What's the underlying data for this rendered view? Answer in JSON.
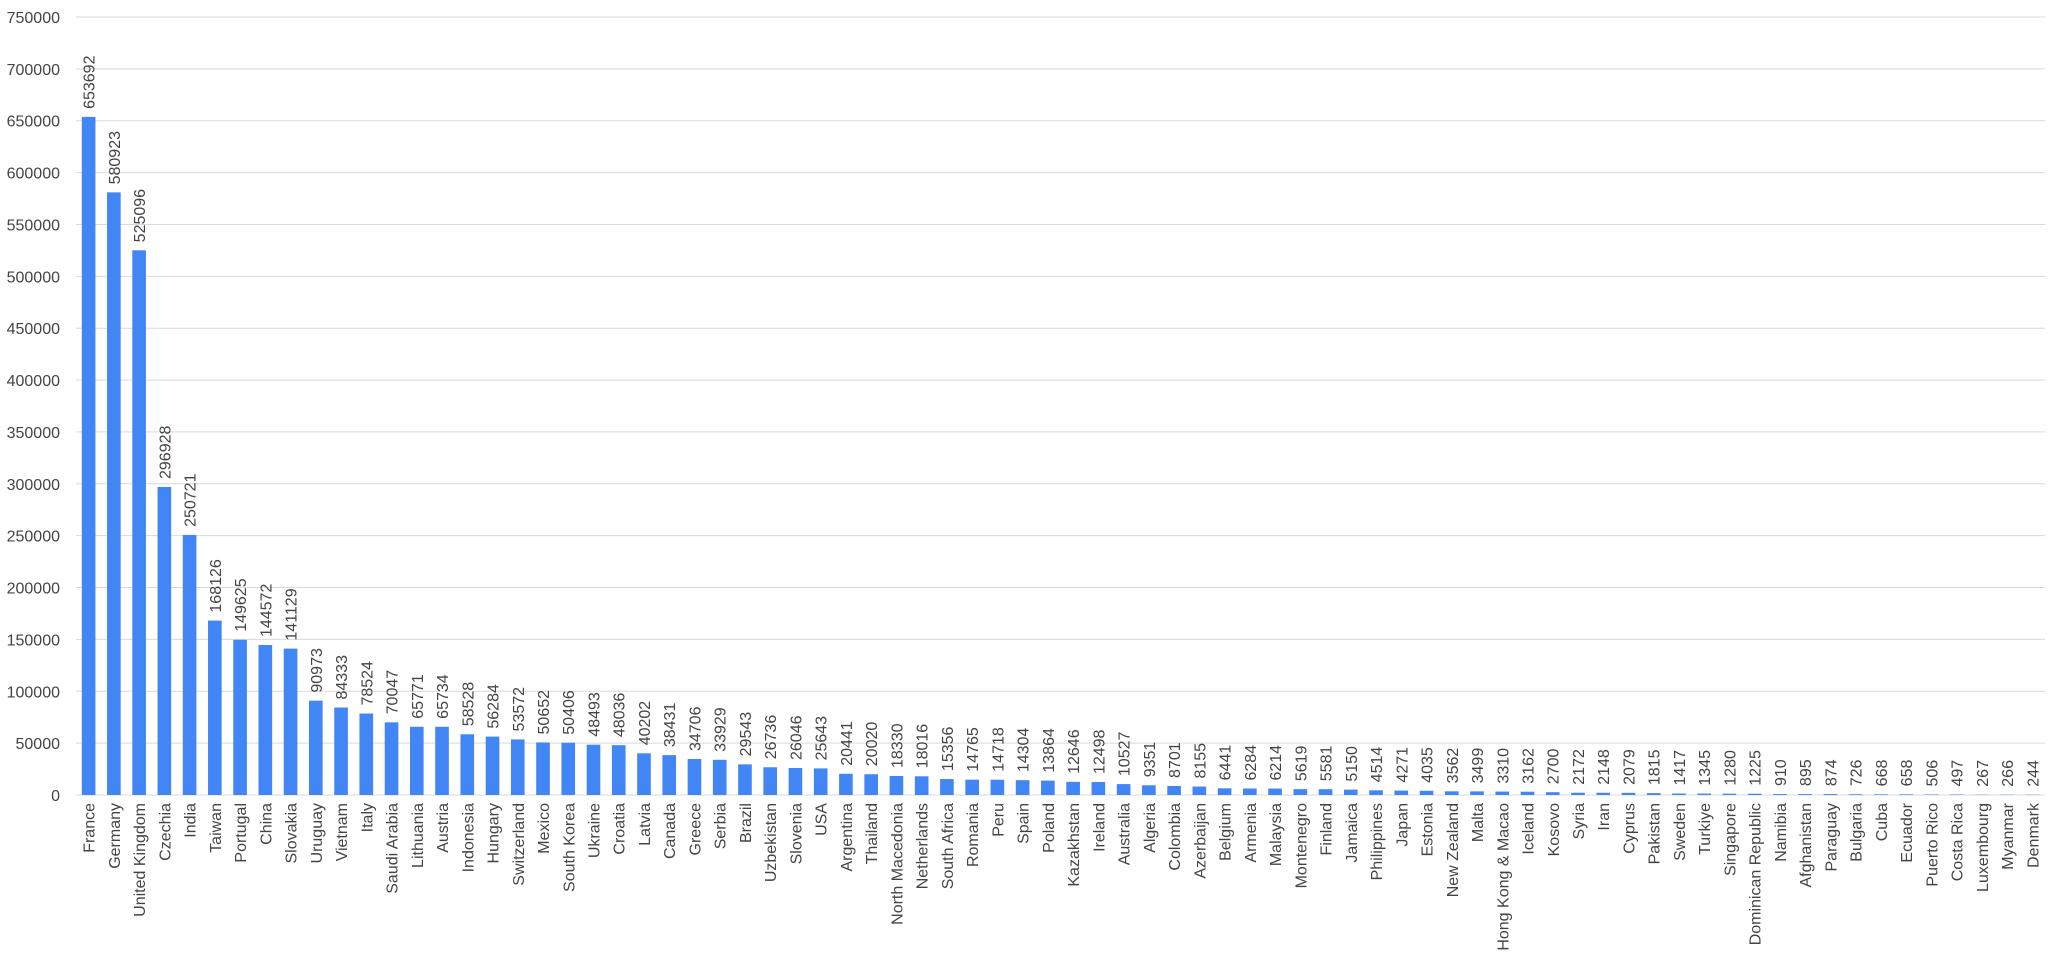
{
  "chart_data": {
    "type": "bar",
    "categories": [
      "France",
      "Germany",
      "United Kingdom",
      "Czechia",
      "India",
      "Taiwan",
      "Portugal",
      "China",
      "Slovakia",
      "Uruguay",
      "Vietnam",
      "Italy",
      "Saudi Arabia",
      "Lithuania",
      "Austria",
      "Indonesia",
      "Hungary",
      "Switzerland",
      "Mexico",
      "South Korea",
      "Ukraine",
      "Croatia",
      "Latvia",
      "Canada",
      "Greece",
      "Serbia",
      "Brazil",
      "Uzbekistan",
      "Slovenia",
      "USA",
      "Argentina",
      "Thailand",
      "North Macedonia",
      "Netherlands",
      "South Africa",
      "Romania",
      "Peru",
      "Spain",
      "Poland",
      "Kazakhstan",
      "Ireland",
      "Australia",
      "Algeria",
      "Colombia",
      "Azerbaijan",
      "Belgium",
      "Armenia",
      "Malaysia",
      "Montenegro",
      "Finland",
      "Jamaica",
      "Philippines",
      "Japan",
      "Estonia",
      "New Zealand",
      "Malta",
      "Hong Kong & Macao",
      "Iceland",
      "Kosovo",
      "Syria",
      "Iran",
      "Cyprus",
      "Pakistan",
      "Sweden",
      "Turkiye",
      "Singapore",
      "Dominican Republic",
      "Namibia",
      "Afghanistan",
      "Paraguay",
      "Bulgaria",
      "Cuba",
      "Ecuador",
      "Puerto Rico",
      "Costa Rica",
      "Luxembourg",
      "Myanmar",
      "Denmark"
    ],
    "values": [
      653692,
      580923,
      525096,
      296928,
      250721,
      168126,
      149625,
      144572,
      141129,
      90973,
      84333,
      78524,
      70047,
      65771,
      65734,
      58528,
      56284,
      53572,
      50652,
      50406,
      48493,
      48036,
      40202,
      38431,
      34706,
      33929,
      29543,
      26736,
      26046,
      25643,
      20441,
      20020,
      18330,
      18016,
      15356,
      14765,
      14718,
      14304,
      13864,
      12646,
      12498,
      10527,
      9351,
      8701,
      8155,
      6441,
      6284,
      6214,
      5619,
      5581,
      5150,
      4514,
      4271,
      4035,
      3562,
      3499,
      3310,
      3162,
      2700,
      2172,
      2148,
      2079,
      1815,
      1417,
      1345,
      1280,
      1225,
      910,
      895,
      874,
      726,
      668,
      658,
      506,
      497,
      267,
      266,
      244
    ],
    "color": "#4285f4",
    "ylim": [
      0,
      750000
    ],
    "yticks": [
      0,
      50000,
      100000,
      150000,
      200000,
      250000,
      300000,
      350000,
      400000,
      450000,
      500000,
      550000,
      600000,
      650000,
      700000,
      750000
    ],
    "grid": true
  }
}
